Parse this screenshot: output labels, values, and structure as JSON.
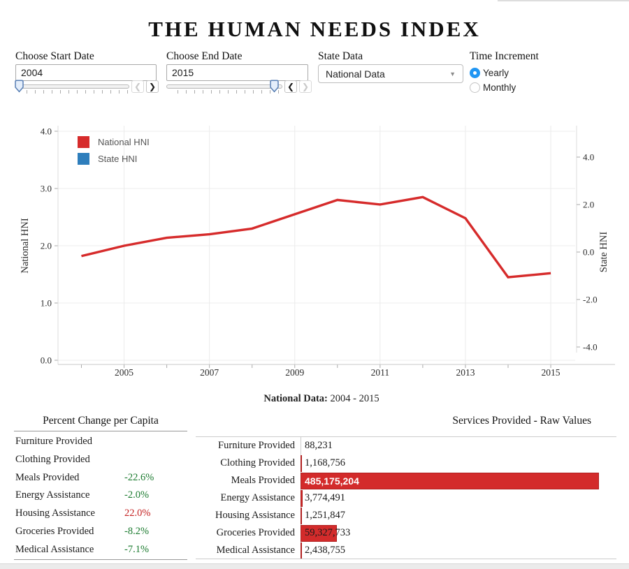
{
  "page": {
    "title": "THE HUMAN NEEDS INDEX"
  },
  "icons": {
    "chevron_left": "❮",
    "chevron_right": "❯",
    "caret_down": "▼"
  },
  "colors": {
    "accent_blue": "#2196f3",
    "line_red": "#d62b2b",
    "bar_red": "#d32b2b",
    "bar_border": "#b02020",
    "legend_blue": "#2e7ebc",
    "negative_green": "#1a7a2e",
    "positive_red": "#c42222"
  },
  "controls": {
    "start_date": {
      "label": "Choose Start Date",
      "value": "2004"
    },
    "end_date": {
      "label": "Choose End Date",
      "value": "2015"
    },
    "state_data": {
      "label": "State Data",
      "selected": "National Data"
    },
    "time_increment": {
      "label": "Time Increment",
      "options": [
        {
          "label": "Yearly",
          "selected": true
        },
        {
          "label": "Monthly",
          "selected": false
        }
      ]
    }
  },
  "chart_data": {
    "type": "line",
    "x": [
      2004,
      2005,
      2006,
      2007,
      2008,
      2009,
      2010,
      2011,
      2012,
      2013,
      2014,
      2015
    ],
    "series": [
      {
        "name": "National HNI",
        "color": "#d62b2b",
        "values": [
          1.82,
          2.0,
          2.14,
          2.2,
          2.3,
          2.55,
          2.8,
          2.72,
          2.85,
          2.48,
          1.45,
          1.52
        ]
      },
      {
        "name": "State HNI",
        "color": "#2e7ebc",
        "values": []
      }
    ],
    "left_axis": {
      "label": "National HNI",
      "tick_values": [
        0,
        1,
        2,
        3,
        4
      ],
      "tick_labels": [
        "0.0",
        "1.0",
        "2.0",
        "3.0",
        "4.0"
      ],
      "range": [
        0,
        4.1
      ]
    },
    "right_axis": {
      "label": "State HNI",
      "tick_values": [
        -4,
        -2,
        0,
        2,
        4
      ],
      "tick_labels": [
        "-4.0",
        "-2.0",
        "0.0",
        "2.0",
        "4.0"
      ],
      "range": [
        -4.6,
        4.6
      ]
    },
    "x_labeled_years": [
      2005,
      2007,
      2009,
      2011,
      2013,
      2015
    ],
    "grid": true,
    "legend_position": "top-left",
    "legend": [
      {
        "label": "National HNI",
        "color": "#d62b2b"
      },
      {
        "label": "State HNI",
        "color": "#2e7ebc"
      }
    ]
  },
  "summary": {
    "label_bold": "National Data:",
    "label_range": "2004 - 2015"
  },
  "left_table": {
    "title": "Percent Change per Capita",
    "rows": [
      {
        "label": "Furniture Provided",
        "value": "",
        "color": null
      },
      {
        "label": "Clothing Provided",
        "value": "",
        "color": null
      },
      {
        "label": "Meals Provided",
        "value": "-22.6%",
        "color": "green"
      },
      {
        "label": "Energy Assistance",
        "value": "-2.0%",
        "color": "green"
      },
      {
        "label": "Housing Assistance",
        "value": "22.0%",
        "color": "red"
      },
      {
        "label": "Groceries Provided",
        "value": "-8.2%",
        "color": "green"
      },
      {
        "label": "Medical Assistance",
        "value": "-7.1%",
        "color": "green"
      }
    ]
  },
  "right_table": {
    "title": "Services Provided - Raw Values",
    "rows": [
      {
        "label": "Furniture Provided",
        "value": "88,231",
        "raw": 88231
      },
      {
        "label": "Clothing Provided",
        "value": "1,168,756",
        "raw": 1168756
      },
      {
        "label": "Meals Provided",
        "value": "485,175,204",
        "raw": 485175204
      },
      {
        "label": "Energy Assistance",
        "value": "3,774,491",
        "raw": 3774491
      },
      {
        "label": "Housing Assistance",
        "value": "1,251,847",
        "raw": 1251847
      },
      {
        "label": "Groceries Provided",
        "value": "59,327,733",
        "raw": 59327733
      },
      {
        "label": "Medical Assistance",
        "value": "2,438,755",
        "raw": 2438755
      }
    ]
  }
}
